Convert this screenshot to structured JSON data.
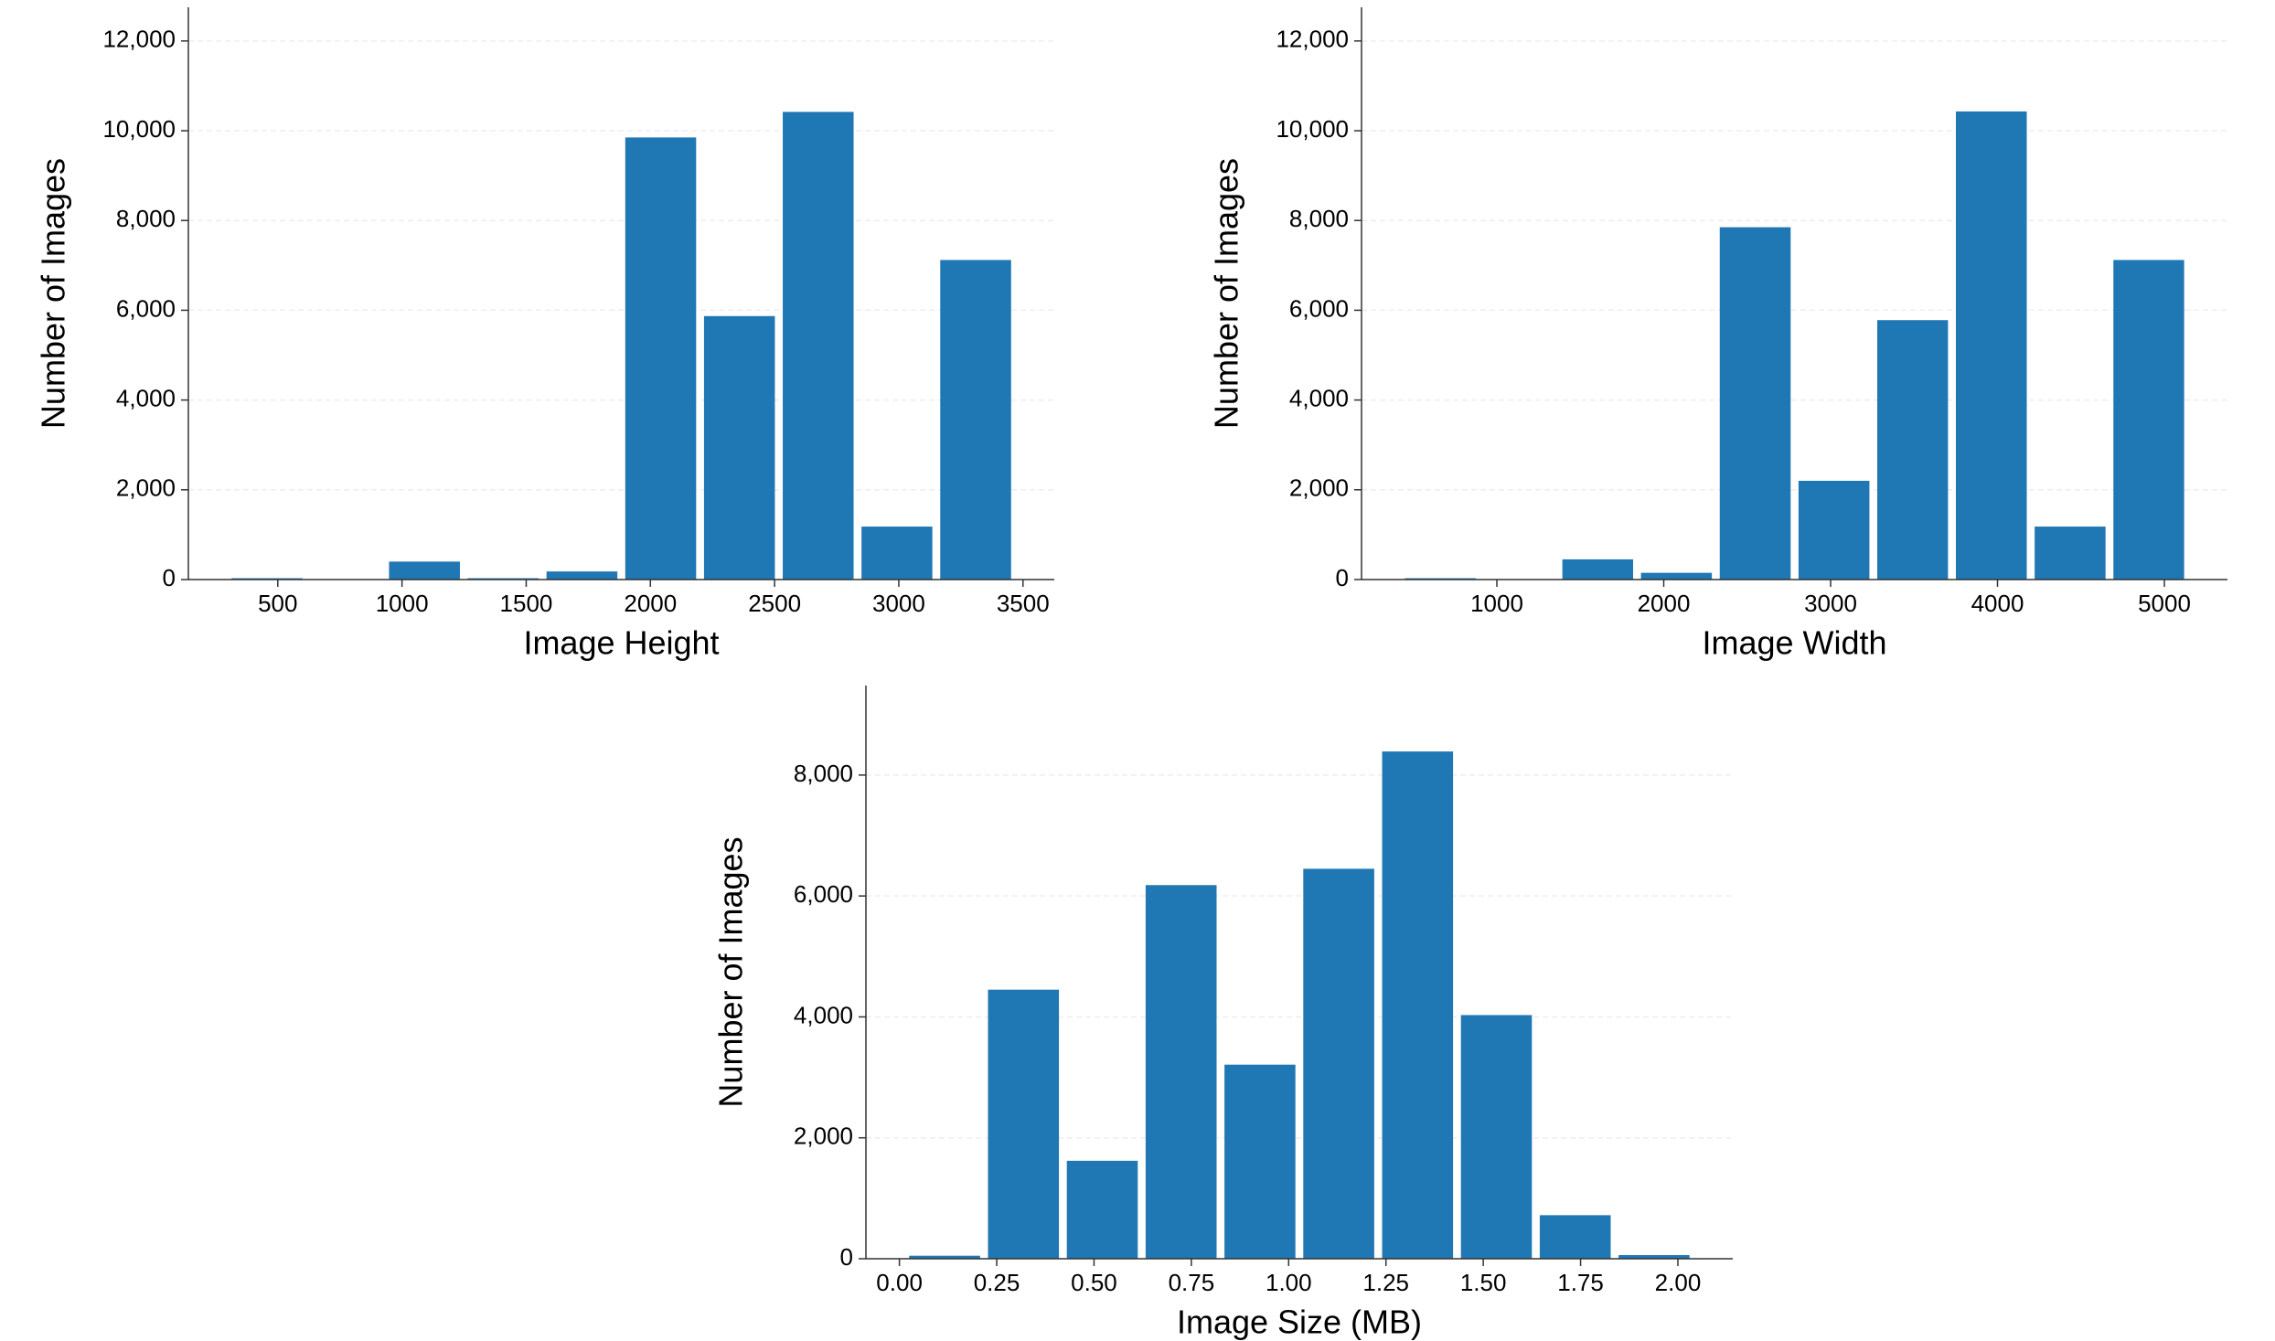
{
  "chart_data": [
    {
      "type": "histogram",
      "xlabel": "Image Height",
      "ylabel": "Number of Images",
      "color": "#1f77b4",
      "grid": true,
      "bins": [
        298,
        615,
        932,
        1249,
        1566,
        1883,
        2200,
        2517,
        2834,
        3151,
        3468
      ],
      "values": [
        30,
        0,
        400,
        30,
        180,
        9850,
        5870,
        10420,
        1180,
        7120
      ],
      "xlim": [
        140,
        3626
      ],
      "ylim": [
        0,
        12750
      ],
      "xticks": [
        500,
        1000,
        1500,
        2000,
        2500,
        3000,
        3500
      ],
      "yticks": [
        0,
        {
          "value": 2000,
          "label": "2,000"
        },
        {
          "value": 4000,
          "label": "4,000"
        },
        {
          "value": 6000,
          "label": "6,000"
        },
        {
          "value": 8000,
          "label": "8,000"
        },
        {
          "value": 10000,
          "label": "10,000"
        },
        {
          "value": 12000,
          "label": "12,000"
        }
      ]
    },
    {
      "type": "histogram",
      "xlabel": "Image Width",
      "ylabel": "Number of Images",
      "color": "#1f77b4",
      "grid": true,
      "bins": [
        425,
        897,
        1369,
        1840,
        2312,
        2784,
        3256,
        3727,
        4199,
        4671,
        5142
      ],
      "values": [
        30,
        0,
        450,
        150,
        7850,
        2200,
        5780,
        10430,
        1180,
        7120
      ],
      "xlim": [
        189,
        5378
      ],
      "ylim": [
        0,
        12750
      ],
      "xticks": [
        1000,
        2000,
        3000,
        4000,
        5000
      ],
      "yticks": [
        0,
        {
          "value": 2000,
          "label": "2,000"
        },
        {
          "value": 4000,
          "label": "4,000"
        },
        {
          "value": 6000,
          "label": "6,000"
        },
        {
          "value": 8000,
          "label": "8,000"
        },
        {
          "value": 10000,
          "label": "10,000"
        },
        {
          "value": 12000,
          "label": "12,000"
        }
      ]
    },
    {
      "type": "histogram",
      "xlabel": "Image Size (MB)",
      "ylabel": "Number of Images",
      "color": "#1f77b4",
      "grid": true,
      "bins": [
        0.015,
        0.2175,
        0.42,
        0.6225,
        0.825,
        1.0275,
        1.23,
        1.4325,
        1.635,
        1.8375,
        2.04
      ],
      "values": [
        50,
        4450,
        1620,
        6180,
        3210,
        6450,
        8390,
        4030,
        720,
        60
      ],
      "xlim": [
        -0.086,
        2.141
      ],
      "ylim": [
        0,
        9480
      ],
      "xticks": [
        {
          "value": 0,
          "label": "0.00"
        },
        0.25,
        {
          "value": 0.5,
          "label": "0.50"
        },
        0.75,
        {
          "value": 1,
          "label": "1.00"
        },
        1.25,
        {
          "value": 1.5,
          "label": "1.50"
        },
        1.75,
        {
          "value": 2,
          "label": "2.00"
        }
      ],
      "yticks": [
        0,
        {
          "value": 2000,
          "label": "2,000"
        },
        {
          "value": 4000,
          "label": "4,000"
        },
        {
          "value": 6000,
          "label": "6,000"
        },
        {
          "value": 8000,
          "label": "8,000"
        }
      ]
    }
  ]
}
